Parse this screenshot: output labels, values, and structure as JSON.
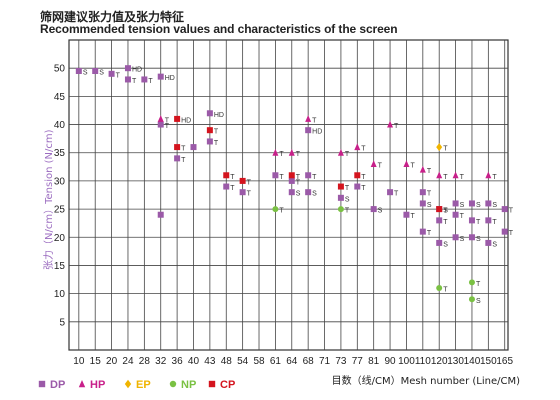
{
  "header": {
    "title_cn": "筛网建议张力值及张力特征",
    "title_en": "Recommended tension values and characteristics of the screen"
  },
  "chart_data": {
    "type": "scatter",
    "title": "Recommended tension values and characteristics of the screen",
    "xlabel": "目数（线/CM）Mesh number (Line/CM)",
    "ylabel": "张力（N/cm）Tension (N/cm)",
    "categories": [
      "10",
      "15",
      "20",
      "24",
      "28",
      "32",
      "36",
      "40",
      "43",
      "48",
      "54",
      "58",
      "61",
      "64",
      "68",
      "71",
      "73",
      "77",
      "81",
      "90",
      "100",
      "110",
      "120",
      "130",
      "140",
      "150",
      "165"
    ],
    "yticks": [
      5,
      10,
      15,
      20,
      25,
      30,
      35,
      40,
      45,
      50
    ],
    "ylim": [
      0,
      55
    ],
    "grid": true,
    "legend_position": "bottom",
    "series": [
      {
        "name": "DP",
        "marker": "square",
        "color": "#9b5aa8",
        "points": [
          {
            "x": "10",
            "y": 49.5,
            "label": "S"
          },
          {
            "x": "15",
            "y": 49.5,
            "label": "S"
          },
          {
            "x": "20",
            "y": 49,
            "label": "T"
          },
          {
            "x": "24",
            "y": 50,
            "label": "HD"
          },
          {
            "x": "24",
            "y": 48,
            "label": "T"
          },
          {
            "x": "28",
            "y": 48,
            "label": "T"
          },
          {
            "x": "32",
            "y": 48.5,
            "label": "HD"
          },
          {
            "x": "32",
            "y": 40,
            "label": "T"
          },
          {
            "x": "32",
            "y": 24,
            "label": ""
          },
          {
            "x": "36",
            "y": 34,
            "label": "T"
          },
          {
            "x": "40",
            "y": 36,
            "label": ""
          },
          {
            "x": "43",
            "y": 42,
            "label": "HD"
          },
          {
            "x": "43",
            "y": 37,
            "label": "T"
          },
          {
            "x": "48",
            "y": 29,
            "label": "T"
          },
          {
            "x": "54",
            "y": 28,
            "label": "T"
          },
          {
            "x": "61",
            "y": 31,
            "label": "T"
          },
          {
            "x": "64",
            "y": 28,
            "label": "S"
          },
          {
            "x": "64",
            "y": 30,
            "label": "T"
          },
          {
            "x": "68",
            "y": 39,
            "label": "HD"
          },
          {
            "x": "68",
            "y": 31,
            "label": "T"
          },
          {
            "x": "68",
            "y": 28,
            "label": "S"
          },
          {
            "x": "73",
            "y": 27,
            "label": "S"
          },
          {
            "x": "77",
            "y": 29,
            "label": "T"
          },
          {
            "x": "81",
            "y": 25,
            "label": "S"
          },
          {
            "x": "90",
            "y": 28,
            "label": "T"
          },
          {
            "x": "100",
            "y": 24,
            "label": "T"
          },
          {
            "x": "110",
            "y": 28,
            "label": "T"
          },
          {
            "x": "110",
            "y": 26,
            "label": "S"
          },
          {
            "x": "110",
            "y": 21,
            "label": "T"
          },
          {
            "x": "120",
            "y": 25,
            "label": "S"
          },
          {
            "x": "120",
            "y": 23,
            "label": "T"
          },
          {
            "x": "120",
            "y": 19,
            "label": "S"
          },
          {
            "x": "130",
            "y": 26,
            "label": "S"
          },
          {
            "x": "130",
            "y": 24,
            "label": "T"
          },
          {
            "x": "130",
            "y": 20,
            "label": "S"
          },
          {
            "x": "140",
            "y": 26,
            "label": "S"
          },
          {
            "x": "140",
            "y": 23,
            "label": "T"
          },
          {
            "x": "140",
            "y": 20,
            "label": "S"
          },
          {
            "x": "150",
            "y": 26,
            "label": "S"
          },
          {
            "x": "150",
            "y": 23,
            "label": "T"
          },
          {
            "x": "150",
            "y": 19,
            "label": "S"
          },
          {
            "x": "165",
            "y": 25,
            "label": "T"
          },
          {
            "x": "165",
            "y": 21,
            "label": "T"
          }
        ]
      },
      {
        "name": "HP",
        "marker": "triangle",
        "color": "#c8208a",
        "points": [
          {
            "x": "32",
            "y": 41,
            "label": "T"
          },
          {
            "x": "61",
            "y": 35,
            "label": "T"
          },
          {
            "x": "64",
            "y": 35,
            "label": "T"
          },
          {
            "x": "68",
            "y": 41,
            "label": "T"
          },
          {
            "x": "73",
            "y": 35,
            "label": "T"
          },
          {
            "x": "77",
            "y": 36,
            "label": "T"
          },
          {
            "x": "81",
            "y": 33,
            "label": "T"
          },
          {
            "x": "90",
            "y": 40,
            "label": "T"
          },
          {
            "x": "100",
            "y": 33,
            "label": "T"
          },
          {
            "x": "110",
            "y": 32,
            "label": "T"
          },
          {
            "x": "120",
            "y": 31,
            "label": "T"
          },
          {
            "x": "130",
            "y": 31,
            "label": "T"
          },
          {
            "x": "150",
            "y": 31,
            "label": "T"
          }
        ]
      },
      {
        "name": "EP",
        "marker": "diamond",
        "color": "#f0b400",
        "points": [
          {
            "x": "120",
            "y": 36,
            "label": "T"
          }
        ]
      },
      {
        "name": "NP",
        "marker": "circle",
        "color": "#7ac143",
        "points": [
          {
            "x": "61",
            "y": 25,
            "label": "T"
          },
          {
            "x": "73",
            "y": 25,
            "label": "T"
          },
          {
            "x": "120",
            "y": 11,
            "label": "T"
          },
          {
            "x": "140",
            "y": 12,
            "label": "T"
          },
          {
            "x": "140",
            "y": 9,
            "label": "S"
          }
        ]
      },
      {
        "name": "CP",
        "marker": "square",
        "color": "#d4141e",
        "points": [
          {
            "x": "36",
            "y": 41,
            "label": "HD"
          },
          {
            "x": "36",
            "y": 36,
            "label": "T"
          },
          {
            "x": "43",
            "y": 39,
            "label": "T"
          },
          {
            "x": "48",
            "y": 31,
            "label": "T"
          },
          {
            "x": "54",
            "y": 30,
            "label": "T"
          },
          {
            "x": "64",
            "y": 31,
            "label": "T"
          },
          {
            "x": "73",
            "y": 29,
            "label": "T"
          },
          {
            "x": "77",
            "y": 31,
            "label": "T"
          },
          {
            "x": "120",
            "y": 25,
            "label": "T"
          }
        ]
      }
    ]
  }
}
